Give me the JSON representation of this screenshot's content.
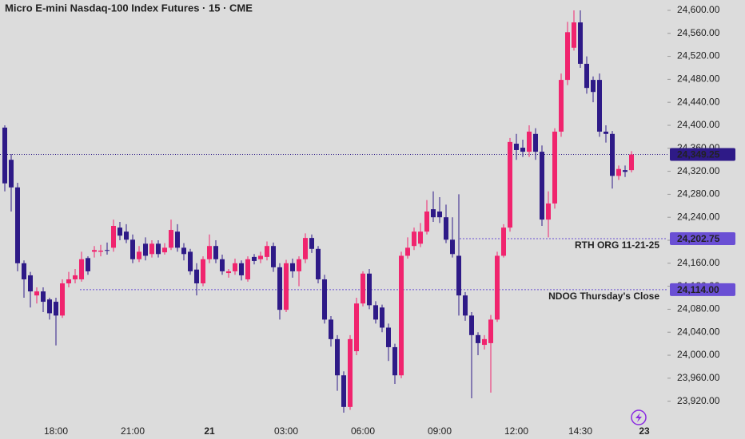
{
  "chart_data": {
    "type": "candlestick",
    "title": "Micro E-mini Nasdaq-100 Index Futures · 15 · CME",
    "categories": [
      null,
      null,
      null,
      null,
      null,
      null,
      null,
      null,
      "18:00",
      null,
      null,
      null,
      null,
      null,
      null,
      null,
      null,
      null,
      null,
      null,
      "21:00",
      null,
      null,
      null,
      null,
      null,
      null,
      null,
      null,
      null,
      null,
      null,
      "21",
      null,
      null,
      null,
      null,
      null,
      null,
      null,
      null,
      null,
      null,
      null,
      "03:00",
      null,
      null,
      null,
      null,
      null,
      null,
      null,
      null,
      null,
      null,
      null,
      "06:00",
      null,
      null,
      null,
      null,
      null,
      null,
      null,
      null,
      null,
      null,
      null,
      "09:00",
      null,
      null,
      null,
      null,
      null,
      null,
      null,
      null,
      null,
      null,
      null,
      "12:00",
      null,
      null,
      null,
      null,
      null,
      null,
      null,
      null,
      null,
      "14:30",
      null,
      null,
      null,
      null,
      null,
      null,
      null,
      null,
      null,
      "23"
    ],
    "open": [
      24396,
      24340,
      24292,
      24160,
      24139,
      24104,
      24111,
      24097,
      24093,
      24069,
      24125,
      24132,
      24132,
      24169,
      24180,
      24180,
      24183,
      24187,
      24222,
      24215,
      24201,
      24167,
      24194,
      24176,
      24194,
      24179,
      24187,
      24215,
      24187,
      24180,
      24149,
      24125,
      24167,
      24190,
      24167,
      24143,
      24146,
      24160,
      24132,
      24171,
      24167,
      24171,
      24190,
      24153,
      24079,
      24160,
      24146,
      24167,
      24204,
      24185,
      24132,
      24062,
      24028,
      23965,
      23910,
      24007,
      24090,
      24142,
      24087,
      24083,
      24048,
      24014,
      23965,
      24173,
      24190,
      24194,
      24215,
      24254,
      24250,
      24240,
      24201,
      24173,
      24104,
      24069,
      24035,
      24018,
      24021,
      24062,
      24173,
      24222,
      24368,
      24361,
      24354,
      24385,
      24354,
      24236,
      24264,
      24389,
      24479,
      24535,
      24579,
      24507,
      24479,
      24479,
      24389,
      24385,
      24312,
      24322,
      24322,
      null,
      null
    ],
    "high": [
      24400,
      24350,
      24300,
      24165,
      24145,
      24118,
      24118,
      24100,
      24100,
      24132,
      24145,
      24150,
      24180,
      24172,
      24190,
      24192,
      24196,
      24236,
      24232,
      24228,
      24210,
      24190,
      24205,
      24200,
      24200,
      24195,
      24236,
      24228,
      24195,
      24185,
      24160,
      24172,
      24210,
      24200,
      24175,
      24150,
      24168,
      24165,
      24172,
      24176,
      24180,
      24198,
      24196,
      24160,
      24166,
      24168,
      24172,
      24212,
      24210,
      24190,
      24140,
      24068,
      24035,
      23972,
      24035,
      24100,
      24146,
      24150,
      24094,
      24088,
      24055,
      24020,
      24180,
      24205,
      24222,
      24230,
      24270,
      24285,
      24275,
      24262,
      24240,
      24280,
      24110,
      24075,
      24040,
      24035,
      24070,
      24180,
      24228,
      24378,
      24385,
      24375,
      24400,
      24395,
      24365,
      24285,
      24395,
      24490,
      24580,
      24600,
      24600,
      24520,
      24485,
      24490,
      24400,
      24390,
      24330,
      24330,
      24355,
      null,
      null
    ],
    "low": [
      24285,
      24250,
      24146,
      24100,
      24083,
      24090,
      24075,
      24062,
      24017,
      24065,
      24118,
      24125,
      24128,
      24140,
      24170,
      24172,
      24175,
      24180,
      24200,
      24195,
      24160,
      24162,
      24165,
      24170,
      24170,
      24175,
      24183,
      24180,
      24165,
      24140,
      24104,
      24120,
      24160,
      24160,
      24140,
      24135,
      24140,
      24130,
      24128,
      24158,
      24160,
      24165,
      24145,
      24062,
      24075,
      24135,
      24120,
      24160,
      24178,
      24125,
      24055,
      24015,
      23938,
      23900,
      23905,
      24000,
      24085,
      24080,
      24055,
      24040,
      23990,
      23950,
      23960,
      24168,
      24183,
      24188,
      24210,
      24232,
      24230,
      24195,
      24170,
      24069,
      24060,
      23925,
      24000,
      24010,
      23935,
      24058,
      24170,
      24215,
      24340,
      24345,
      24345,
      24340,
      24225,
      24205,
      24255,
      24380,
      24470,
      24530,
      24500,
      24455,
      24440,
      24380,
      24370,
      24290,
      24305,
      24310,
      24318,
      null,
      null
    ],
    "close": [
      24299,
      24292,
      24160,
      24132,
      24111,
      24111,
      24093,
      24073,
      24069,
      24125,
      24132,
      24139,
      24167,
      24146,
      24183,
      24182,
      24182,
      24225,
      24208,
      24201,
      24167,
      24180,
      24173,
      24194,
      24176,
      24187,
      24218,
      24187,
      24176,
      24146,
      24125,
      24167,
      24190,
      24167,
      24146,
      24146,
      24160,
      24139,
      24167,
      24164,
      24173,
      24190,
      24153,
      24079,
      24160,
      24146,
      24167,
      24204,
      24185,
      24132,
      24062,
      24028,
      23965,
      23910,
      24028,
      24090,
      24142,
      24087,
      24062,
      24048,
      24014,
      23965,
      24173,
      24187,
      24215,
      24215,
      24250,
      24240,
      24240,
      24201,
      24176,
      24104,
      24069,
      24035,
      24021,
      24028,
      24062,
      24173,
      24222,
      24371,
      24357,
      24354,
      24389,
      24354,
      24236,
      24264,
      24389,
      24479,
      24562,
      24579,
      24507,
      24465,
      24458,
      24389,
      24385,
      24312,
      24324,
      24319,
      24349.25,
      null,
      null
    ],
    "up_color": "#f0246e",
    "down_color": "#2e1a87",
    "ylim": [
      23882,
      24618
    ],
    "yticks": [
      {
        "value": 23920,
        "label": "23,920.00"
      },
      {
        "value": 23960,
        "label": "23,960.00"
      },
      {
        "value": 24000,
        "label": "24,000.00"
      },
      {
        "value": 24040,
        "label": "24,040.00"
      },
      {
        "value": 24080,
        "label": "24,080.00"
      },
      {
        "value": 24120,
        "label": "24,120.00"
      },
      {
        "value": 24160,
        "label": "24,160.00"
      },
      {
        "value": 24200,
        "label": "24,200.00"
      },
      {
        "value": 24240,
        "label": "24,240.00"
      },
      {
        "value": 24280,
        "label": "24,280.00"
      },
      {
        "value": 24320,
        "label": "24,320.00"
      },
      {
        "value": 24360,
        "label": "24,360.00"
      },
      {
        "value": 24400,
        "label": "24,400.00"
      },
      {
        "value": 24440,
        "label": "24,440.00"
      },
      {
        "value": 24480,
        "label": "24,480.00"
      },
      {
        "value": 24520,
        "label": "24,520.00"
      },
      {
        "value": 24560,
        "label": "24,560.00"
      },
      {
        "value": 24600,
        "label": "24,600.00"
      }
    ],
    "last_price": {
      "value": 24349.25,
      "label": "24,349.25"
    },
    "levels": [
      {
        "name": "RTH ORG 11-21-25",
        "price": {
          "value": 24202.75,
          "label": "24,202.75"
        },
        "color": "#6a4fd4"
      },
      {
        "name": "NDOG Thursday's Close",
        "price": {
          "value": 24114.0,
          "label": "24,114.00"
        },
        "color": "#6a4fd4"
      }
    ]
  }
}
